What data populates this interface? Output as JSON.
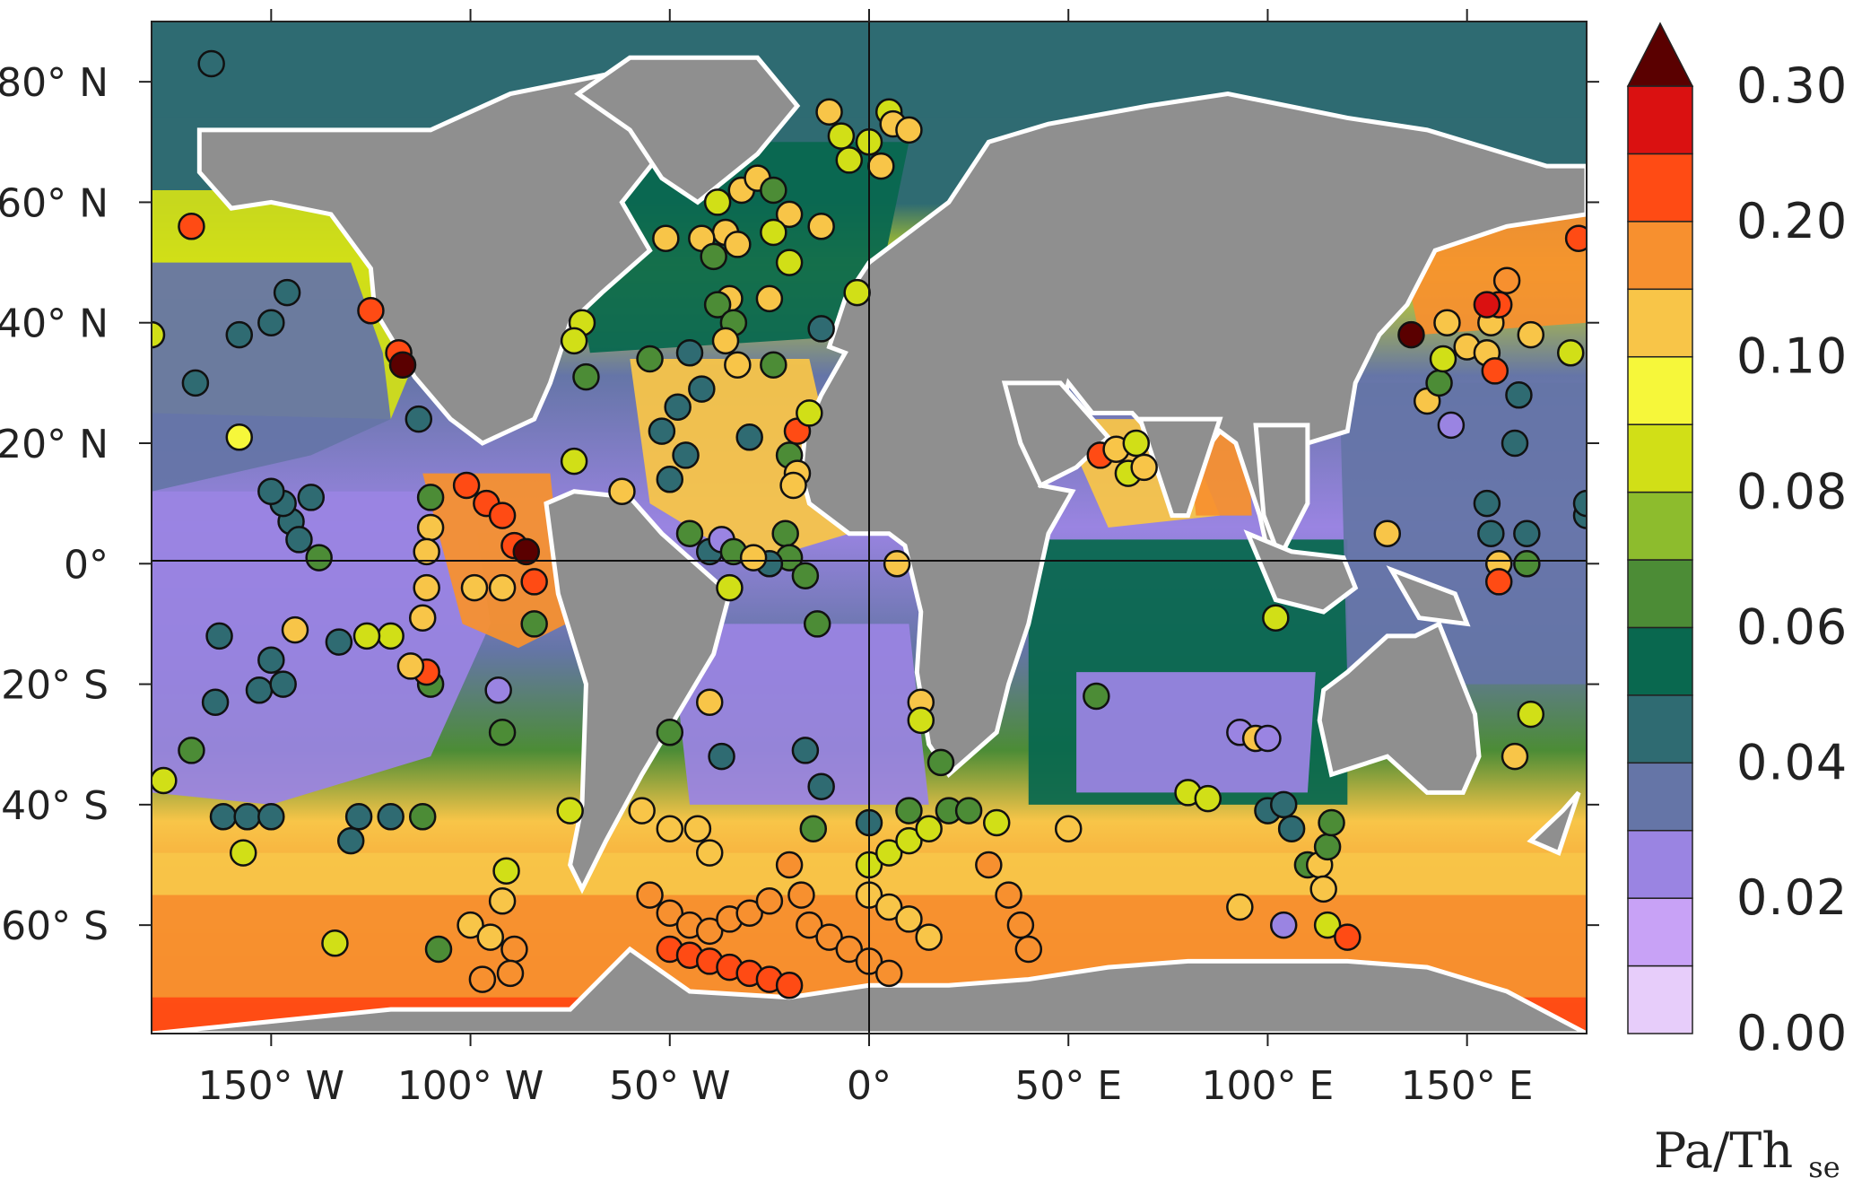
{
  "map": {
    "type": "global-map",
    "projection": "equirectangular",
    "lon_range": [
      -180,
      180
    ],
    "lat_range": [
      -78,
      90
    ],
    "land_color": "#8f8f8f",
    "gap_color": "#ffffff",
    "lat_ticks": [
      {
        "value": 80,
        "label": "80° N"
      },
      {
        "value": 60,
        "label": "60° N"
      },
      {
        "value": 40,
        "label": "40° N"
      },
      {
        "value": 20,
        "label": "20° N"
      },
      {
        "value": 0,
        "label": "0°"
      },
      {
        "value": -20,
        "label": "20° S"
      },
      {
        "value": -40,
        "label": "40° S"
      },
      {
        "value": -60,
        "label": "60° S"
      }
    ],
    "lon_ticks": [
      {
        "value": -150,
        "label": "150° W"
      },
      {
        "value": -100,
        "label": "100° W"
      },
      {
        "value": -50,
        "label": "50° W"
      },
      {
        "value": 0,
        "label": "0°"
      },
      {
        "value": 50,
        "label": "50° E"
      },
      {
        "value": 100,
        "label": "100° E"
      },
      {
        "value": 150,
        "label": "150° E"
      }
    ]
  },
  "colorbar": {
    "unit_main": "Pa/Th",
    "unit_sub": "se",
    "tick_labels": [
      "0.00",
      "0.02",
      "0.04",
      "0.06",
      "0.08",
      "0.10",
      "0.20",
      "0.30"
    ],
    "levels": [
      0.0,
      0.01,
      0.02,
      0.03,
      0.04,
      0.05,
      0.06,
      0.07,
      0.08,
      0.09,
      0.1,
      0.15,
      0.2,
      0.25,
      0.3
    ],
    "colors": [
      "#e7cdfa",
      "#c8a2f6",
      "#9a84e2",
      "#6575a7",
      "#2f6b72",
      "#09684f",
      "#4c8c36",
      "#8dbc2d",
      "#d1df17",
      "#f6f73a",
      "#f8c548",
      "#f7902f",
      "#ff4b14",
      "#da1111",
      "#5a0000"
    ]
  },
  "chart_data": {
    "type": "map",
    "description_values": {
      "colorbar_range": [
        0.0,
        0.3
      ],
      "sample_count_style": "circle markers"
    },
    "markers": [
      {
        "lon": -165,
        "lat": 83,
        "value": 0.04
      },
      {
        "lon": -170,
        "lat": 56,
        "value": 0.2
      },
      {
        "lon": -180,
        "lat": 38,
        "value": 0.08
      },
      {
        "lon": -146,
        "lat": 45,
        "value": 0.04
      },
      {
        "lon": -150,
        "lat": 40,
        "value": 0.04
      },
      {
        "lon": -158,
        "lat": 38,
        "value": 0.04
      },
      {
        "lon": -169,
        "lat": 30,
        "value": 0.04
      },
      {
        "lon": -158,
        "lat": 21,
        "value": 0.09
      },
      {
        "lon": -125,
        "lat": 42,
        "value": 0.2
      },
      {
        "lon": -118,
        "lat": 35,
        "value": 0.2
      },
      {
        "lon": -117,
        "lat": 33,
        "value": 0.3
      },
      {
        "lon": -113,
        "lat": 24,
        "value": 0.04
      },
      {
        "lon": -140,
        "lat": 11,
        "value": 0.04
      },
      {
        "lon": -145,
        "lat": 7,
        "value": 0.04
      },
      {
        "lon": -147,
        "lat": 10,
        "value": 0.04
      },
      {
        "lon": -150,
        "lat": 12,
        "value": 0.04
      },
      {
        "lon": -143,
        "lat": 4,
        "value": 0.04
      },
      {
        "lon": -138,
        "lat": 1,
        "value": 0.06
      },
      {
        "lon": -110,
        "lat": 11,
        "value": 0.06
      },
      {
        "lon": -110,
        "lat": 6,
        "value": 0.1
      },
      {
        "lon": -111,
        "lat": 2,
        "value": 0.1
      },
      {
        "lon": -111,
        "lat": -4,
        "value": 0.1
      },
      {
        "lon": -112,
        "lat": -9,
        "value": 0.1
      },
      {
        "lon": -120,
        "lat": -12,
        "value": 0.08
      },
      {
        "lon": -126,
        "lat": -12,
        "value": 0.08
      },
      {
        "lon": -133,
        "lat": -13,
        "value": 0.04
      },
      {
        "lon": -110,
        "lat": -20,
        "value": 0.06
      },
      {
        "lon": -111,
        "lat": -18,
        "value": 0.2
      },
      {
        "lon": -115,
        "lat": -17,
        "value": 0.1
      },
      {
        "lon": -163,
        "lat": -12,
        "value": 0.04
      },
      {
        "lon": -153,
        "lat": -21,
        "value": 0.04
      },
      {
        "lon": -164,
        "lat": -23,
        "value": 0.04
      },
      {
        "lon": -147,
        "lat": -20,
        "value": 0.04
      },
      {
        "lon": -150,
        "lat": -16,
        "value": 0.04
      },
      {
        "lon": -144,
        "lat": -11,
        "value": 0.1
      },
      {
        "lon": -170,
        "lat": -31,
        "value": 0.06
      },
      {
        "lon": -177,
        "lat": -36,
        "value": 0.08
      },
      {
        "lon": -162,
        "lat": -42,
        "value": 0.04
      },
      {
        "lon": -156,
        "lat": -42,
        "value": 0.04
      },
      {
        "lon": -150,
        "lat": -42,
        "value": 0.04
      },
      {
        "lon": -128,
        "lat": -42,
        "value": 0.04
      },
      {
        "lon": -120,
        "lat": -42,
        "value": 0.04
      },
      {
        "lon": -112,
        "lat": -42,
        "value": 0.06
      },
      {
        "lon": -130,
        "lat": -46,
        "value": 0.04
      },
      {
        "lon": -157,
        "lat": -48,
        "value": 0.08
      },
      {
        "lon": -100,
        "lat": -60,
        "value": 0.1
      },
      {
        "lon": -95,
        "lat": -62,
        "value": 0.1
      },
      {
        "lon": -92,
        "lat": -56,
        "value": 0.1
      },
      {
        "lon": -91,
        "lat": -51,
        "value": 0.08
      },
      {
        "lon": -89,
        "lat": -64,
        "value": 0.15
      },
      {
        "lon": -90,
        "lat": -68,
        "value": 0.15
      },
      {
        "lon": -97,
        "lat": -69,
        "value": 0.15
      },
      {
        "lon": -108,
        "lat": -64,
        "value": 0.06
      },
      {
        "lon": -134,
        "lat": -63,
        "value": 0.08
      },
      {
        "lon": -101,
        "lat": 13,
        "value": 0.2
      },
      {
        "lon": -96,
        "lat": 10,
        "value": 0.2
      },
      {
        "lon": -92,
        "lat": 8,
        "value": 0.2
      },
      {
        "lon": -89,
        "lat": 3,
        "value": 0.2
      },
      {
        "lon": -86,
        "lat": 2,
        "value": 0.3
      },
      {
        "lon": -84,
        "lat": -3,
        "value": 0.2
      },
      {
        "lon": -92,
        "lat": -4,
        "value": 0.1
      },
      {
        "lon": -99,
        "lat": -4,
        "value": 0.1
      },
      {
        "lon": -84,
        "lat": -10,
        "value": 0.06
      },
      {
        "lon": -92,
        "lat": -28,
        "value": 0.06
      },
      {
        "lon": -93,
        "lat": -21,
        "value": 0.02
      },
      {
        "lon": -75,
        "lat": -41,
        "value": 0.08
      },
      {
        "lon": -72,
        "lat": 40,
        "value": 0.08
      },
      {
        "lon": -74,
        "lat": 37,
        "value": 0.08
      },
      {
        "lon": -71,
        "lat": 31,
        "value": 0.06
      },
      {
        "lon": -74,
        "lat": 17,
        "value": 0.08
      },
      {
        "lon": -62,
        "lat": 12,
        "value": 0.1
      },
      {
        "lon": -55,
        "lat": 34,
        "value": 0.06
      },
      {
        "lon": -45,
        "lat": 35,
        "value": 0.04
      },
      {
        "lon": -48,
        "lat": 26,
        "value": 0.04
      },
      {
        "lon": -42,
        "lat": 29,
        "value": 0.04
      },
      {
        "lon": -52,
        "lat": 22,
        "value": 0.04
      },
      {
        "lon": -46,
        "lat": 18,
        "value": 0.04
      },
      {
        "lon": -50,
        "lat": 14,
        "value": 0.04
      },
      {
        "lon": -45,
        "lat": 5,
        "value": 0.06
      },
      {
        "lon": -40,
        "lat": 2,
        "value": 0.04
      },
      {
        "lon": -37,
        "lat": 4,
        "value": 0.02
      },
      {
        "lon": -34,
        "lat": 2,
        "value": 0.06
      },
      {
        "lon": -30,
        "lat": 21,
        "value": 0.04
      },
      {
        "lon": -20,
        "lat": 18,
        "value": 0.06
      },
      {
        "lon": -18,
        "lat": 15,
        "value": 0.1
      },
      {
        "lon": -19,
        "lat": 13,
        "value": 0.1
      },
      {
        "lon": -18,
        "lat": 22,
        "value": 0.2
      },
      {
        "lon": -15,
        "lat": 25,
        "value": 0.08
      },
      {
        "lon": -21,
        "lat": 5,
        "value": 0.06
      },
      {
        "lon": -20,
        "lat": 1,
        "value": 0.06
      },
      {
        "lon": -16,
        "lat": -2,
        "value": 0.06
      },
      {
        "lon": -25,
        "lat": 0,
        "value": 0.04
      },
      {
        "lon": -29,
        "lat": 1,
        "value": 0.1
      },
      {
        "lon": -35,
        "lat": -4,
        "value": 0.08
      },
      {
        "lon": -13,
        "lat": -10,
        "value": 0.06
      },
      {
        "lon": 7,
        "lat": 0,
        "value": 0.1
      },
      {
        "lon": -38,
        "lat": 60,
        "value": 0.08
      },
      {
        "lon": -32,
        "lat": 62,
        "value": 0.1
      },
      {
        "lon": -28,
        "lat": 64,
        "value": 0.1
      },
      {
        "lon": -24,
        "lat": 62,
        "value": 0.06
      },
      {
        "lon": -20,
        "lat": 58,
        "value": 0.1
      },
      {
        "lon": -36,
        "lat": 55,
        "value": 0.1
      },
      {
        "lon": -42,
        "lat": 54,
        "value": 0.1
      },
      {
        "lon": -51,
        "lat": 54,
        "value": 0.1
      },
      {
        "lon": -39,
        "lat": 51,
        "value": 0.06
      },
      {
        "lon": -33,
        "lat": 53,
        "value": 0.1
      },
      {
        "lon": -24,
        "lat": 55,
        "value": 0.08
      },
      {
        "lon": -20,
        "lat": 50,
        "value": 0.08
      },
      {
        "lon": -12,
        "lat": 56,
        "value": 0.1
      },
      {
        "lon": -35,
        "lat": 44,
        "value": 0.1
      },
      {
        "lon": -38,
        "lat": 43,
        "value": 0.06
      },
      {
        "lon": -34,
        "lat": 40,
        "value": 0.06
      },
      {
        "lon": -36,
        "lat": 37,
        "value": 0.1
      },
      {
        "lon": -24,
        "lat": 33,
        "value": 0.06
      },
      {
        "lon": -12,
        "lat": 39,
        "value": 0.04
      },
      {
        "lon": -33,
        "lat": 33,
        "value": 0.1
      },
      {
        "lon": -25,
        "lat": 44,
        "value": 0.1
      },
      {
        "lon": -10,
        "lat": 75,
        "value": 0.1
      },
      {
        "lon": -7,
        "lat": 71,
        "value": 0.08
      },
      {
        "lon": -5,
        "lat": 67,
        "value": 0.08
      },
      {
        "lon": 0,
        "lat": 70,
        "value": 0.08
      },
      {
        "lon": 5,
        "lat": 75,
        "value": 0.08
      },
      {
        "lon": 3,
        "lat": 66,
        "value": 0.1
      },
      {
        "lon": 6,
        "lat": 73,
        "value": 0.1
      },
      {
        "lon": 10,
        "lat": 72,
        "value": 0.1
      },
      {
        "lon": -3,
        "lat": 45,
        "value": 0.08
      },
      {
        "lon": -57,
        "lat": -41,
        "value": 0.1
      },
      {
        "lon": -50,
        "lat": -44,
        "value": 0.1
      },
      {
        "lon": -43,
        "lat": -44,
        "value": 0.1
      },
      {
        "lon": -40,
        "lat": -48,
        "value": 0.1
      },
      {
        "lon": -50,
        "lat": -28,
        "value": 0.06
      },
      {
        "lon": -40,
        "lat": -23,
        "value": 0.1
      },
      {
        "lon": -37,
        "lat": -32,
        "value": 0.04
      },
      {
        "lon": -16,
        "lat": -31,
        "value": 0.04
      },
      {
        "lon": -12,
        "lat": -37,
        "value": 0.04
      },
      {
        "lon": -14,
        "lat": -44,
        "value": 0.06
      },
      {
        "lon": 0,
        "lat": -43,
        "value": 0.04
      },
      {
        "lon": 13,
        "lat": -23,
        "value": 0.1
      },
      {
        "lon": 13,
        "lat": -26,
        "value": 0.08
      },
      {
        "lon": 18,
        "lat": -33,
        "value": 0.06
      },
      {
        "lon": 10,
        "lat": -41,
        "value": 0.06
      },
      {
        "lon": 20,
        "lat": -41,
        "value": 0.06
      },
      {
        "lon": 25,
        "lat": -41,
        "value": 0.06
      },
      {
        "lon": 32,
        "lat": -43,
        "value": 0.08
      },
      {
        "lon": 50,
        "lat": -44,
        "value": 0.1
      },
      {
        "lon": 58,
        "lat": 18,
        "value": 0.2
      },
      {
        "lon": 62,
        "lat": 19,
        "value": 0.1
      },
      {
        "lon": 65,
        "lat": 15,
        "value": 0.08
      },
      {
        "lon": 67,
        "lat": 20,
        "value": 0.08
      },
      {
        "lon": 69,
        "lat": 16,
        "value": 0.1
      },
      {
        "lon": 57,
        "lat": -22,
        "value": 0.06
      },
      {
        "lon": 80,
        "lat": -38,
        "value": 0.08
      },
      {
        "lon": 85,
        "lat": -39,
        "value": 0.08
      },
      {
        "lon": 93,
        "lat": -28,
        "value": 0.02
      },
      {
        "lon": 97,
        "lat": -29,
        "value": 0.1
      },
      {
        "lon": 100,
        "lat": -29,
        "value": 0.02
      },
      {
        "lon": 102,
        "lat": -9,
        "value": 0.08
      },
      {
        "lon": 100,
        "lat": -41,
        "value": 0.04
      },
      {
        "lon": 104,
        "lat": -40,
        "value": 0.04
      },
      {
        "lon": 106,
        "lat": -44,
        "value": 0.04
      },
      {
        "lon": 110,
        "lat": -50,
        "value": 0.06
      },
      {
        "lon": 113,
        "lat": -50,
        "value": 0.1
      },
      {
        "lon": 115,
        "lat": -47,
        "value": 0.06
      },
      {
        "lon": 116,
        "lat": -43,
        "value": 0.06
      },
      {
        "lon": 114,
        "lat": -54,
        "value": 0.1
      },
      {
        "lon": 115,
        "lat": -60,
        "value": 0.08
      },
      {
        "lon": 120,
        "lat": -62,
        "value": 0.2
      },
      {
        "lon": 104,
        "lat": -60,
        "value": 0.02
      },
      {
        "lon": 93,
        "lat": -57,
        "value": 0.1
      },
      {
        "lon": 130,
        "lat": 5,
        "value": 0.1
      },
      {
        "lon": 136,
        "lat": 38,
        "value": 0.3
      },
      {
        "lon": 140,
        "lat": 27,
        "value": 0.1
      },
      {
        "lon": 146,
        "lat": 23,
        "value": 0.02
      },
      {
        "lon": 143,
        "lat": 30,
        "value": 0.06
      },
      {
        "lon": 144,
        "lat": 34,
        "value": 0.08
      },
      {
        "lon": 145,
        "lat": 40,
        "value": 0.1
      },
      {
        "lon": 150,
        "lat": 36,
        "value": 0.1
      },
      {
        "lon": 155,
        "lat": 35,
        "value": 0.1
      },
      {
        "lon": 157,
        "lat": 32,
        "value": 0.2
      },
      {
        "lon": 156,
        "lat": 40,
        "value": 0.1
      },
      {
        "lon": 158,
        "lat": 43,
        "value": 0.2
      },
      {
        "lon": 160,
        "lat": 47,
        "value": 0.15
      },
      {
        "lon": 166,
        "lat": 38,
        "value": 0.1
      },
      {
        "lon": 163,
        "lat": 28,
        "value": 0.04
      },
      {
        "lon": 155,
        "lat": 43,
        "value": 0.25
      },
      {
        "lon": 178,
        "lat": 54,
        "value": 0.2
      },
      {
        "lon": 176,
        "lat": 35,
        "value": 0.08
      },
      {
        "lon": 162,
        "lat": 20,
        "value": 0.04
      },
      {
        "lon": 155,
        "lat": 10,
        "value": 0.04
      },
      {
        "lon": 156,
        "lat": 5,
        "value": 0.04
      },
      {
        "lon": 165,
        "lat": 5,
        "value": 0.04
      },
      {
        "lon": 165,
        "lat": 0,
        "value": 0.06
      },
      {
        "lon": 158,
        "lat": 0,
        "value": 0.1
      },
      {
        "lon": 158,
        "lat": -3,
        "value": 0.2
      },
      {
        "lon": 180,
        "lat": 8,
        "value": 0.04
      },
      {
        "lon": 180,
        "lat": 10,
        "value": 0.04
      },
      {
        "lon": 166,
        "lat": -25,
        "value": 0.08
      },
      {
        "lon": 162,
        "lat": -32,
        "value": 0.1
      }
    ],
    "tracks": [
      {
        "value": 0.15,
        "points": [
          [
            -55,
            -55
          ],
          [
            -50,
            -58
          ],
          [
            -45,
            -60
          ],
          [
            -40,
            -61
          ],
          [
            -35,
            -59
          ],
          [
            -30,
            -58
          ],
          [
            -25,
            -56
          ]
        ]
      },
      {
        "value": 0.2,
        "points": [
          [
            -50,
            -64
          ],
          [
            -45,
            -65
          ],
          [
            -40,
            -66
          ],
          [
            -35,
            -67
          ],
          [
            -30,
            -68
          ],
          [
            -25,
            -69
          ],
          [
            -20,
            -70
          ]
        ]
      },
      {
        "value": 0.15,
        "points": [
          [
            -20,
            -50
          ],
          [
            -17,
            -55
          ],
          [
            -15,
            -60
          ],
          [
            -10,
            -62
          ],
          [
            -5,
            -64
          ],
          [
            0,
            -66
          ],
          [
            5,
            -68
          ]
        ]
      },
      {
        "value": 0.1,
        "points": [
          [
            0,
            -55
          ],
          [
            5,
            -57
          ],
          [
            10,
            -59
          ],
          [
            15,
            -62
          ]
        ]
      },
      {
        "value": 0.08,
        "points": [
          [
            0,
            -50
          ],
          [
            5,
            -48
          ],
          [
            10,
            -46
          ],
          [
            15,
            -44
          ]
        ]
      },
      {
        "value": 0.15,
        "points": [
          [
            30,
            -50
          ],
          [
            35,
            -55
          ],
          [
            38,
            -60
          ],
          [
            40,
            -64
          ]
        ]
      }
    ]
  }
}
